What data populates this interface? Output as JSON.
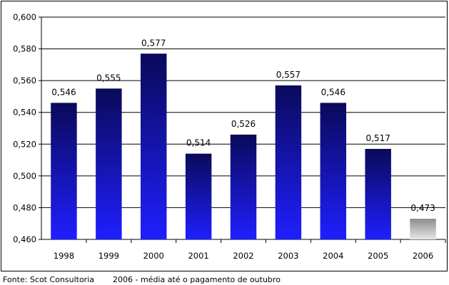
{
  "chart_data": {
    "type": "bar",
    "categories": [
      "1998",
      "1999",
      "2000",
      "2001",
      "2002",
      "2003",
      "2004",
      "2005",
      "2006"
    ],
    "values": [
      0.546,
      0.555,
      0.577,
      0.514,
      0.526,
      0.557,
      0.546,
      0.517,
      0.473
    ],
    "value_labels": [
      "0,546",
      "0,555",
      "0,577",
      "0,514",
      "0,526",
      "0,557",
      "0,546",
      "0,517",
      "0,473"
    ],
    "ylim": [
      0.46,
      0.6
    ],
    "yticks": [
      0.46,
      0.48,
      0.5,
      0.52,
      0.54,
      0.56,
      0.58,
      0.6
    ],
    "ytick_labels": [
      "0,460",
      "0,480",
      "0,500",
      "0,520",
      "0,540",
      "0,560",
      "0,580",
      "0,600"
    ],
    "grid": true,
    "colors": {
      "bar_top": "#0a0a5a",
      "bar_bottom": "#1f1fff",
      "highlight_top": "#e8e8e8",
      "highlight_bottom": "#8c8c8c",
      "grid": "#000000"
    },
    "highlight_category": "2006"
  },
  "footer": {
    "source": "Fonte: Scot Consultoria",
    "note": "2006 - média até o pagamento de outubro"
  }
}
